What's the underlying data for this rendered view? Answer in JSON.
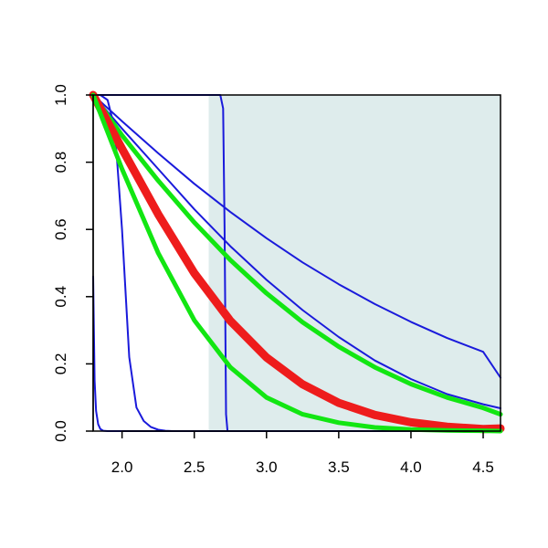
{
  "chart_data": {
    "type": "line",
    "title": "",
    "xlabel": "",
    "ylabel": "",
    "xlim": [
      1.8,
      4.62
    ],
    "ylim": [
      0,
      1
    ],
    "x_ticks": [
      2.0,
      2.5,
      3.0,
      3.5,
      4.0,
      4.5
    ],
    "x_tick_labels": [
      "2.0",
      "2.5",
      "3.0",
      "3.5",
      "4.0",
      "4.5"
    ],
    "y_ticks": [
      0.0,
      0.2,
      0.4,
      0.6,
      0.8,
      1.0
    ],
    "y_tick_labels": [
      "0.0",
      "0.2",
      "0.4",
      "0.6",
      "0.8",
      "1.0"
    ],
    "grid": false,
    "legend": "none",
    "shaded_region": {
      "x": [
        2.6,
        4.62
      ],
      "color": "#deecec"
    },
    "series": [
      {
        "color": "#1a1adb",
        "linewidth": 2,
        "x": [
          1.8,
          1.805,
          1.81,
          1.82,
          1.835,
          1.85,
          1.87,
          1.9,
          4.62
        ],
        "y": [
          0.46,
          0.3,
          0.15,
          0.06,
          0.02,
          0.006,
          0.001,
          0.0,
          0.0
        ]
      },
      {
        "color": "#1a1adb",
        "linewidth": 2,
        "x": [
          1.8,
          1.85,
          1.9,
          1.95,
          2.0,
          2.05,
          2.1,
          2.15,
          2.2,
          2.25,
          2.3,
          2.35,
          4.62
        ],
        "y": [
          1.0,
          1.0,
          0.985,
          0.9,
          0.6,
          0.22,
          0.07,
          0.03,
          0.012,
          0.004,
          0.001,
          0.0,
          0.0
        ]
      },
      {
        "color": "#1a1adb",
        "linewidth": 2,
        "x": [
          1.8,
          2.68,
          2.7,
          2.71,
          2.72,
          2.73,
          4.62
        ],
        "y": [
          1.0,
          1.0,
          0.96,
          0.6,
          0.05,
          0.0,
          0.0
        ]
      },
      {
        "color": "#1a1adb",
        "linewidth": 2,
        "x": [
          1.8,
          2.0,
          2.25,
          2.5,
          2.75,
          3.0,
          3.25,
          3.5,
          3.75,
          4.0,
          4.25,
          4.5,
          4.62
        ],
        "y": [
          1.0,
          0.922,
          0.827,
          0.736,
          0.652,
          0.574,
          0.502,
          0.437,
          0.378,
          0.325,
          0.277,
          0.236,
          0.159
        ]
      },
      {
        "color": "#1a1adb",
        "linewidth": 2,
        "x": [
          1.8,
          2.0,
          2.25,
          2.5,
          2.75,
          3.0,
          3.25,
          3.5,
          3.75,
          4.0,
          4.25,
          4.5,
          4.62
        ],
        "y": [
          1.0,
          0.9,
          0.78,
          0.66,
          0.55,
          0.45,
          0.36,
          0.28,
          0.21,
          0.155,
          0.11,
          0.08,
          0.068
        ]
      },
      {
        "color": "#12e612",
        "linewidth": 5,
        "x": [
          1.8,
          2.0,
          2.25,
          2.5,
          2.75,
          3.0,
          3.25,
          3.5,
          3.75,
          4.0,
          4.25,
          4.5,
          4.62
        ],
        "y": [
          1.0,
          0.88,
          0.745,
          0.621,
          0.509,
          0.41,
          0.324,
          0.251,
          0.19,
          0.14,
          0.1,
          0.069,
          0.05
        ]
      },
      {
        "color": "#ee1c1c",
        "linewidth": 9,
        "x": [
          1.8,
          2.0,
          2.25,
          2.5,
          2.75,
          3.0,
          3.25,
          3.5,
          3.75,
          4.0,
          4.25,
          4.5,
          4.62
        ],
        "y": [
          1.0,
          0.84,
          0.645,
          0.47,
          0.328,
          0.219,
          0.139,
          0.084,
          0.048,
          0.026,
          0.013,
          0.006,
          0.008
        ]
      },
      {
        "color": "#12e612",
        "linewidth": 5,
        "x": [
          1.8,
          2.0,
          2.25,
          2.5,
          2.75,
          3.0,
          3.25,
          3.5,
          3.75,
          4.0,
          4.25,
          4.5,
          4.62
        ],
        "y": [
          1.0,
          0.78,
          0.53,
          0.33,
          0.19,
          0.1,
          0.05,
          0.025,
          0.011,
          0.005,
          0.002,
          0.001,
          0.0
        ]
      }
    ]
  }
}
